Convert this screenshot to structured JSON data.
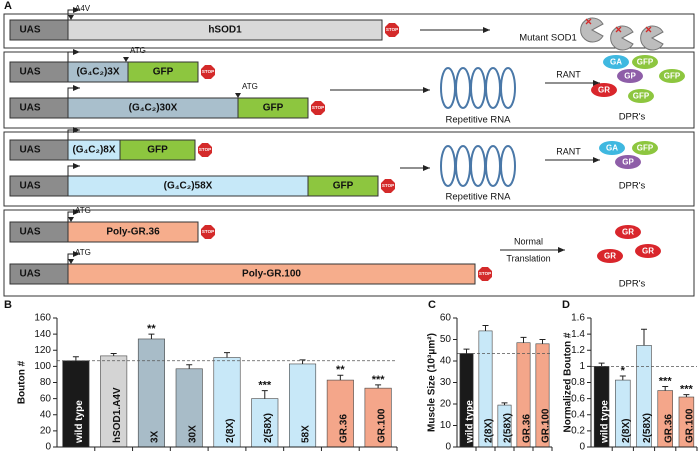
{
  "panel_a": {
    "label": "A",
    "promoter": "UAS",
    "stop": "STOP",
    "start": "ATG",
    "constructs": [
      {
        "name": "hSOD1",
        "mutation": "A4V"
      },
      {
        "repeat": "(G₄C₂)3X",
        "tag": "GFP"
      },
      {
        "repeat": "(G₄C₂)30X",
        "tag": "GFP"
      },
      {
        "repeat": "(G₄C₂)8X",
        "tag": "GFP"
      },
      {
        "repeat": "(G₄C₂)58X",
        "tag": "GFP"
      },
      {
        "name": "Poly-GR.36"
      },
      {
        "name": "Poly-GR.100"
      }
    ],
    "outcomes": [
      {
        "product": "Mutant SOD1"
      },
      {
        "intermediate": "Repetitive RNA",
        "process": [
          "RANT"
        ],
        "dprs": [
          "GA",
          "GFP",
          "GP",
          "GFP",
          "GR",
          "GFP"
        ],
        "product": "DPR's"
      },
      {
        "intermediate": "Repetitive RNA",
        "process": [
          "RANT"
        ],
        "dprs": [
          "GA",
          "GFP",
          "GP"
        ],
        "product": "DPR's"
      },
      {
        "process": [
          "Normal",
          "Translation"
        ],
        "dprs": [
          "GR",
          "GR",
          "GR"
        ],
        "product": "DPR's"
      }
    ]
  },
  "chart_data": [
    {
      "type": "bar",
      "label": "B",
      "ylabel": "Bouton #",
      "categories": [
        "wild type",
        "hSOD1.A4V",
        "3X",
        "30X",
        "2(8X)",
        "2(58X)",
        "58X",
        "GR.36",
        "GR.100"
      ],
      "values": [
        107,
        113,
        134,
        97,
        111,
        60,
        103,
        83,
        73
      ],
      "errors": [
        5,
        3,
        6,
        5,
        6,
        10,
        5,
        6,
        4
      ],
      "annotations": [
        null,
        null,
        "**",
        null,
        null,
        "***",
        null,
        "**",
        "***"
      ],
      "colors": [
        "#1a1a1a",
        "#d4d4d4",
        "#a8bcc8",
        "#a8bcc8",
        "#c8e8f8",
        "#c8e8f8",
        "#c8e8f8",
        "#f4a68a",
        "#f4a68a"
      ],
      "ylim": [
        0,
        160
      ],
      "yticks": [
        0,
        20,
        40,
        60,
        80,
        100,
        120,
        140,
        160
      ]
    },
    {
      "type": "bar",
      "label": "C",
      "ylabel": "Muscle Size (10³μm²)",
      "categories": [
        "wild type",
        "2(8X)",
        "2(58X)",
        "GR.36",
        "GR.100"
      ],
      "values": [
        43.5,
        54,
        19.5,
        48.5,
        48
      ],
      "errors": [
        2,
        2.5,
        1,
        2.5,
        2
      ],
      "annotations": [
        null,
        null,
        null,
        null,
        null
      ],
      "colors": [
        "#1a1a1a",
        "#c8e8f8",
        "#c8e8f8",
        "#f4a68a",
        "#f4a68a"
      ],
      "ylim": [
        0,
        60
      ],
      "yticks": [
        0,
        10,
        20,
        30,
        40,
        50,
        60
      ]
    },
    {
      "type": "bar",
      "label": "D",
      "ylabel": "Normalized Bouton #",
      "categories": [
        "wild type",
        "2(8X)",
        "2(58X)",
        "GR.36",
        "GR.100"
      ],
      "values": [
        1,
        0.83,
        1.26,
        0.7,
        0.62
      ],
      "errors": [
        0.04,
        0.05,
        0.2,
        0.05,
        0.03
      ],
      "annotations": [
        null,
        "*",
        null,
        "***",
        "***"
      ],
      "colors": [
        "#1a1a1a",
        "#c8e8f8",
        "#c8e8f8",
        "#f4a68a",
        "#f4a68a"
      ],
      "ylim": [
        0,
        1.6
      ],
      "yticks": [
        0,
        0.2,
        0.4,
        0.6,
        0.8,
        1,
        1.2,
        1.4,
        1.6
      ]
    }
  ]
}
